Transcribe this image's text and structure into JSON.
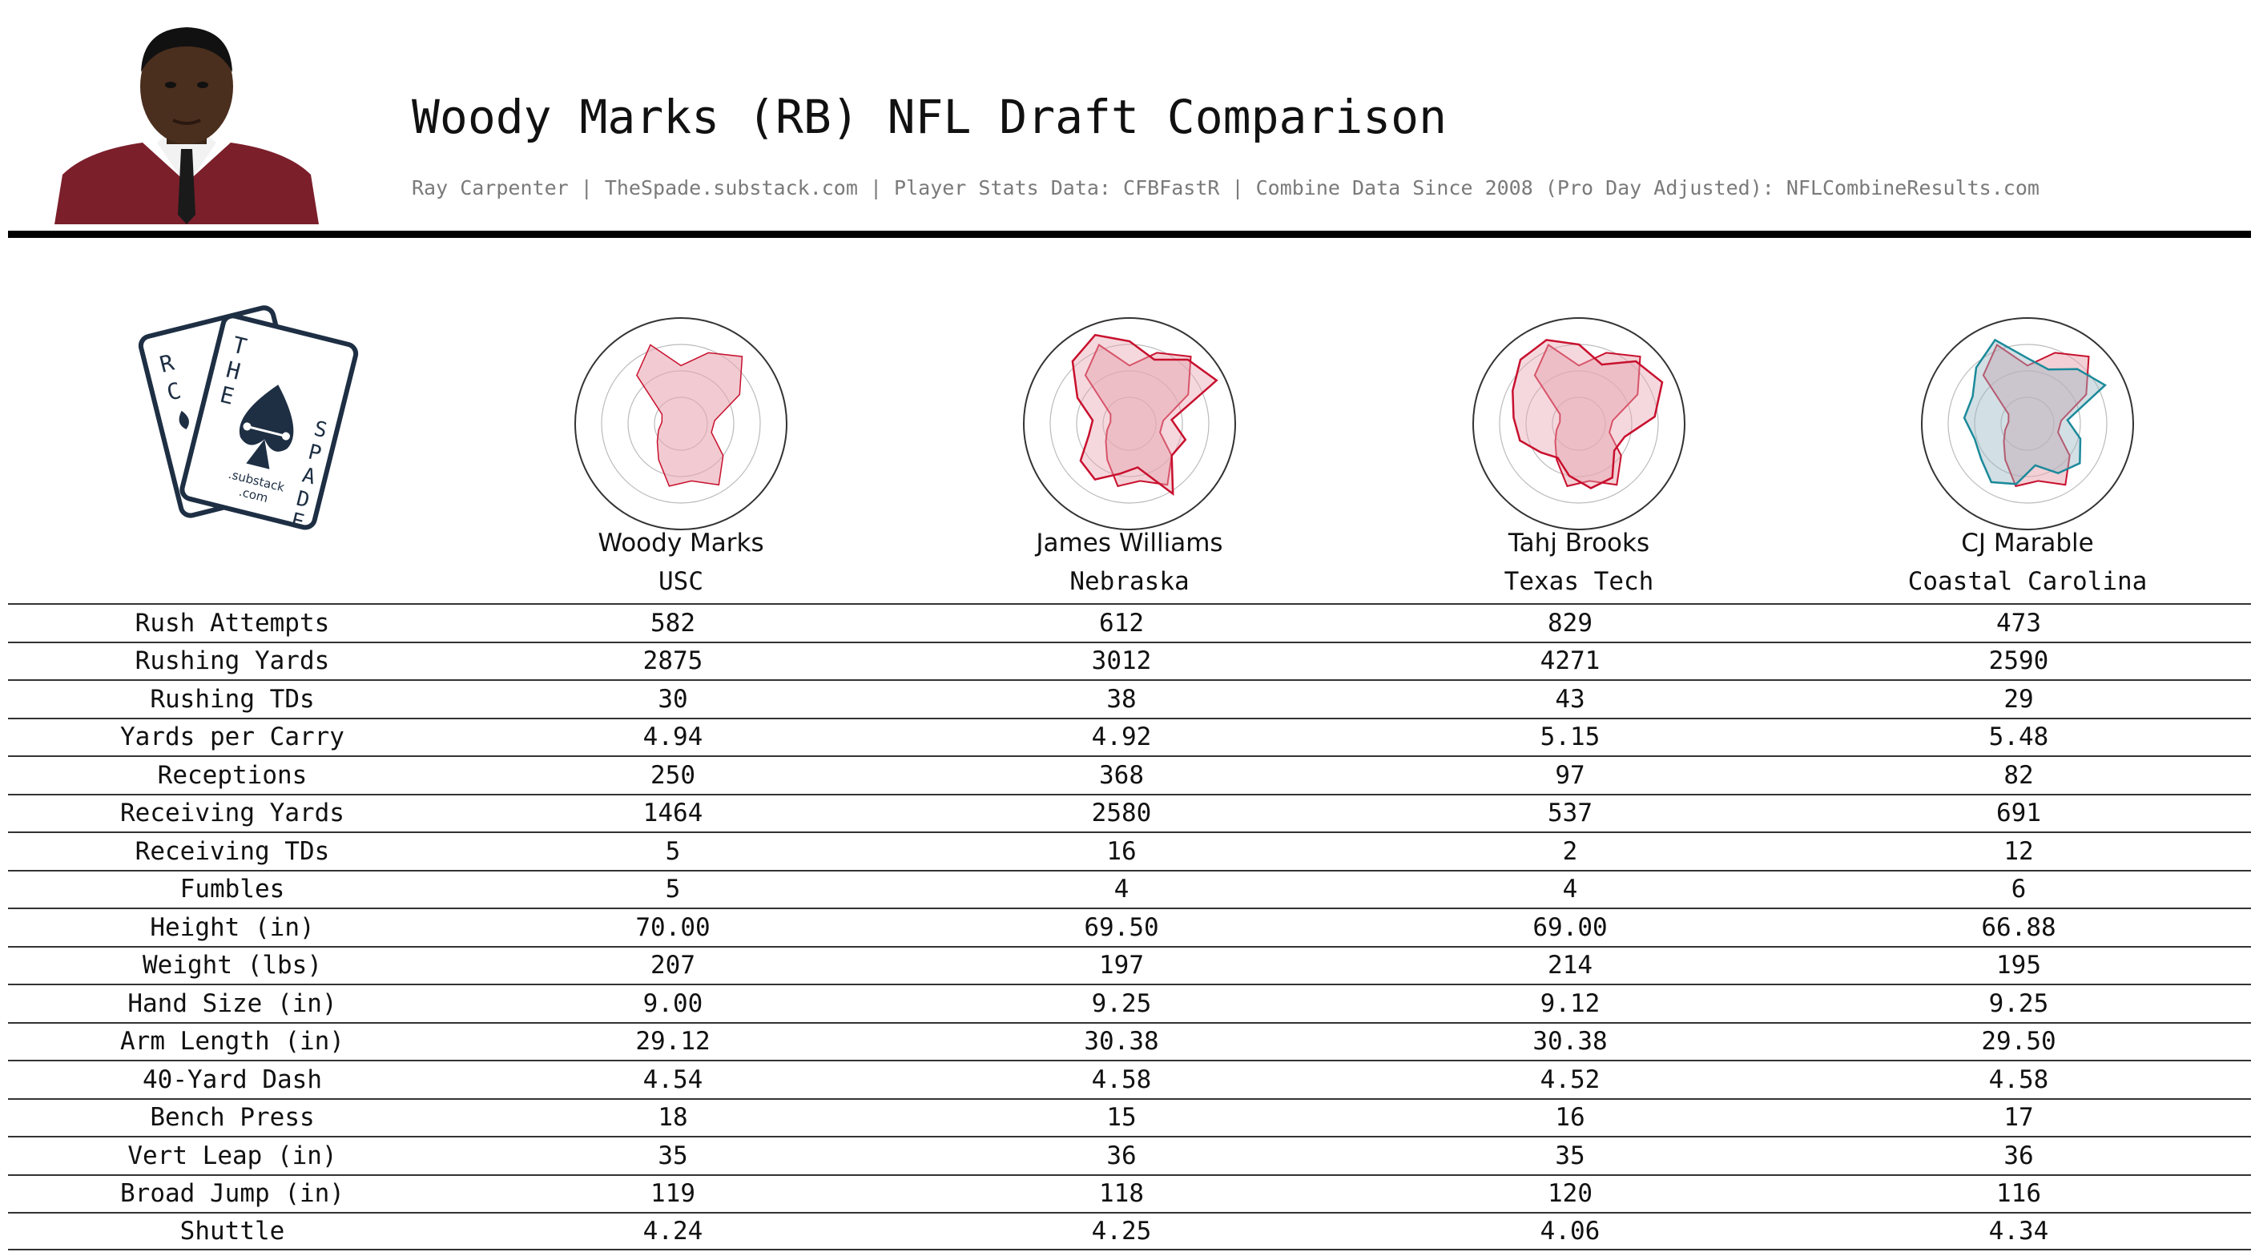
{
  "header": {
    "title": "Woody Marks (RB) NFL Draft Comparison",
    "subtitle": "Ray Carpenter | TheSpade.substack.com | Player Stats Data: CFBFastR | Combine Data Since 2008 (Pro Day Adjusted): NFLCombineResults.com"
  },
  "logo": {
    "text_a": "R",
    "text_c": "C",
    "text_t": "T",
    "text_h": "H",
    "text_e": "E",
    "text_s": "S",
    "text_p": "P",
    "text_a2": "A",
    "text_d": "D",
    "text_e2": "E",
    "substack": ".substack",
    "com": ".com"
  },
  "colors": {
    "woody_fill": "#e8a9b3",
    "comp_line": "#c8102e",
    "cj_line": "#1b8a9a",
    "grid": "#bbbbbb"
  },
  "players": [
    {
      "name": "Woody Marks",
      "school": "USC"
    },
    {
      "name": "James Williams",
      "school": "Nebraska"
    },
    {
      "name": "Tahj Brooks",
      "school": "Texas Tech"
    },
    {
      "name": "CJ Marable",
      "school": "Coastal Carolina"
    }
  ],
  "chart_data": {
    "type": "table",
    "columns": [
      "Woody Marks",
      "James Williams",
      "Tahj Brooks",
      "CJ Marable"
    ],
    "rows": [
      {
        "label": "Rush Attempts",
        "values": [
          "582",
          "612",
          "829",
          "473"
        ]
      },
      {
        "label": "Rushing Yards",
        "values": [
          "2875",
          "3012",
          "4271",
          "2590"
        ]
      },
      {
        "label": "Rushing TDs",
        "values": [
          "30",
          "38",
          "43",
          "29"
        ]
      },
      {
        "label": "Yards per Carry",
        "values": [
          "4.94",
          "4.92",
          "5.15",
          "5.48"
        ]
      },
      {
        "label": "Receptions",
        "values": [
          "250",
          "368",
          "97",
          "82"
        ]
      },
      {
        "label": "Receiving Yards",
        "values": [
          "1464",
          "2580",
          "537",
          "691"
        ]
      },
      {
        "label": "Receiving TDs",
        "values": [
          "5",
          "16",
          "2",
          "12"
        ]
      },
      {
        "label": "Fumbles",
        "values": [
          "5",
          "4",
          "4",
          "6"
        ]
      },
      {
        "label": "Height (in)",
        "values": [
          "70.00",
          "69.50",
          "69.00",
          "66.88"
        ]
      },
      {
        "label": "Weight (lbs)",
        "values": [
          "207",
          "197",
          "214",
          "195"
        ]
      },
      {
        "label": "Hand Size (in)",
        "values": [
          "9.00",
          "9.25",
          "9.12",
          "9.25"
        ]
      },
      {
        "label": "Arm Length (in)",
        "values": [
          "29.12",
          "30.38",
          "30.38",
          "29.50"
        ]
      },
      {
        "label": "40-Yard Dash",
        "values": [
          "4.54",
          "4.58",
          "4.52",
          "4.58"
        ]
      },
      {
        "label": "Bench Press",
        "values": [
          "18",
          "15",
          "16",
          "17"
        ]
      },
      {
        "label": "Vert Leap (in)",
        "values": [
          "35",
          "36",
          "35",
          "36"
        ]
      },
      {
        "label": "Broad Jump (in)",
        "values": [
          "119",
          "118",
          "120",
          "116"
        ]
      },
      {
        "label": "Shuttle",
        "values": [
          "4.24",
          "4.25",
          "4.06",
          "4.34"
        ]
      }
    ],
    "radar": {
      "type": "radar",
      "axes_count": 17,
      "rlim": [
        0,
        1
      ],
      "rings": 4,
      "series": [
        {
          "values": [
            0.55,
            0.72,
            0.86,
            0.62,
            0.32,
            0.3,
            0.5,
            0.68,
            0.55,
            0.6,
            0.4,
            0.28,
            0.22,
            0.18,
            0.2,
            0.62,
            0.8
          ]
        },
        {
          "values": [
            0.78,
            0.65,
            0.82,
            0.92,
            0.4,
            0.55,
            0.5,
            0.78,
            0.42,
            0.48,
            0.62,
            0.58,
            0.4,
            0.35,
            0.55,
            0.8,
            0.9
          ]
        },
        {
          "values": [
            0.75,
            0.6,
            0.8,
            0.88,
            0.72,
            0.45,
            0.42,
            0.6,
            0.62,
            0.5,
            0.38,
            0.45,
            0.58,
            0.62,
            0.7,
            0.82,
            0.85
          ]
        },
        {
          "values": [
            0.62,
            0.55,
            0.7,
            0.82,
            0.38,
            0.52,
            0.62,
            0.55,
            0.4,
            0.58,
            0.65,
            0.55,
            0.52,
            0.6,
            0.58,
            0.72,
            0.85
          ]
        }
      ]
    }
  }
}
